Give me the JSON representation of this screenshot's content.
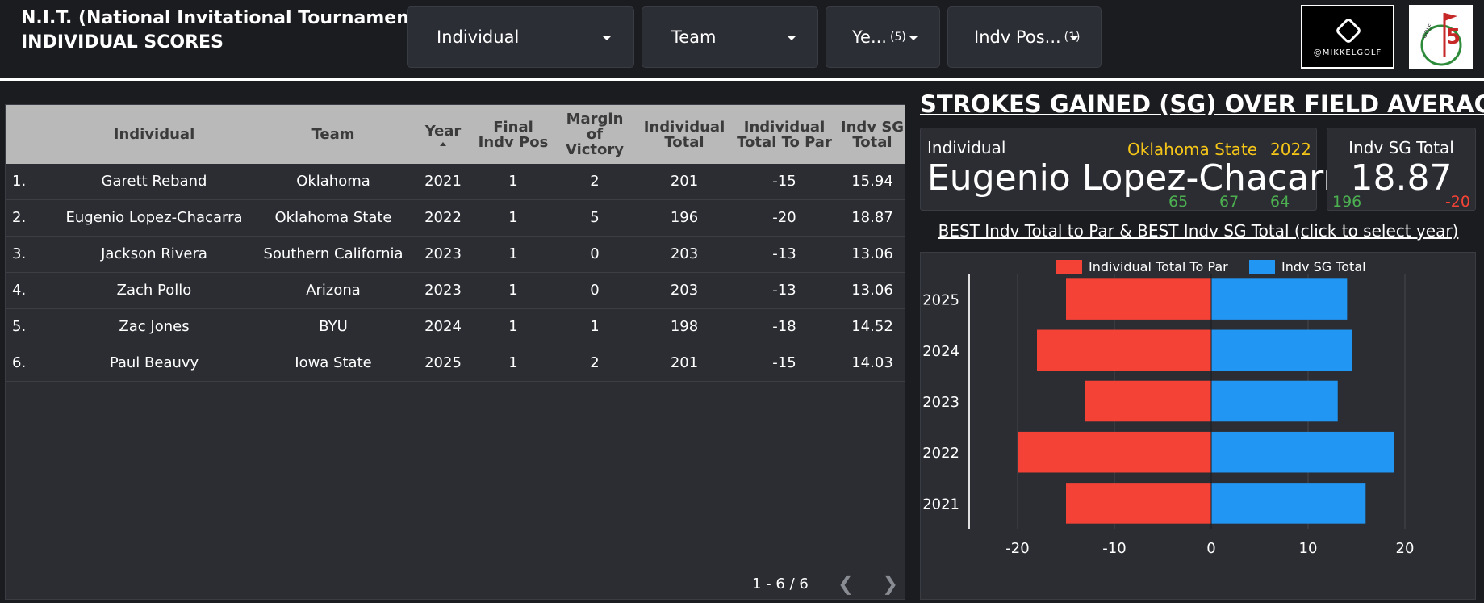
{
  "header": {
    "title_line1": "N.I.T. (National Invitational Tournament) |",
    "title_line2": "INDIVIDUAL SCORES"
  },
  "filters": [
    {
      "label": "Individual",
      "count": ""
    },
    {
      "label": "Team",
      "count": ""
    },
    {
      "label": "Ye...",
      "count": "(5)"
    },
    {
      "label": "Indv Pos...",
      "count": "(1)"
    }
  ],
  "logos": {
    "mikkel_text": "@MIKKELGOLF",
    "flag_text": "GOLF"
  },
  "table": {
    "columns": [
      "Individual",
      "Team",
      "Year",
      "Final Indv Pos",
      "Margin of Victory",
      "Individual Total",
      "Individual Total To Par",
      "Indv SG Total"
    ],
    "header_lines": {
      "final_pos": [
        "Final",
        "Indv Pos"
      ],
      "margin": [
        "Margin",
        "of",
        "Victory"
      ],
      "ind_total": [
        "Individual",
        "Total"
      ],
      "to_par": [
        "Individual",
        "Total To Par"
      ],
      "sg_total": [
        "Indv SG",
        "Total"
      ]
    },
    "rows": [
      {
        "rank": "1.",
        "individual": "Garett Reband",
        "team": "Oklahoma",
        "year": "2021",
        "pos": "1",
        "margin": "2",
        "total": "201",
        "to_par": "-15",
        "sg": "15.94"
      },
      {
        "rank": "2.",
        "individual": "Eugenio Lopez-Chacarra",
        "team": "Oklahoma State",
        "year": "2022",
        "pos": "1",
        "margin": "5",
        "total": "196",
        "to_par": "-20",
        "sg": "18.87"
      },
      {
        "rank": "3.",
        "individual": "Jackson Rivera",
        "team": "Southern California",
        "year": "2023",
        "pos": "1",
        "margin": "0",
        "total": "203",
        "to_par": "-13",
        "sg": "13.06"
      },
      {
        "rank": "4.",
        "individual": "Zach Pollo",
        "team": "Arizona",
        "year": "2023",
        "pos": "1",
        "margin": "0",
        "total": "203",
        "to_par": "-13",
        "sg": "13.06"
      },
      {
        "rank": "5.",
        "individual": "Zac Jones",
        "team": "BYU",
        "year": "2024",
        "pos": "1",
        "margin": "1",
        "total": "198",
        "to_par": "-18",
        "sg": "14.52"
      },
      {
        "rank": "6.",
        "individual": "Paul Beauvy",
        "team": "Iowa State",
        "year": "2025",
        "pos": "1",
        "margin": "2",
        "total": "201",
        "to_par": "-15",
        "sg": "14.03"
      }
    ],
    "pagination": "1 - 6 / 6"
  },
  "sg_section": {
    "title": "STROKES GAINED (SG) OVER FIELD AVERAGE",
    "individual_label": "Individual",
    "team": "Oklahoma State",
    "year": "2022",
    "name": "Eugenio Lopez-Chacarra",
    "rounds": [
      "65",
      "67",
      "64"
    ],
    "sg_label": "Indv SG Total",
    "sg_value": "18.87",
    "sg_total_strokes": "196",
    "sg_to_par": "-20",
    "best_title": "BEST Indv Total to Par & BEST Indv SG Total (click to select year)"
  },
  "colors": {
    "to_par": "#f44336",
    "sg": "#2196f3",
    "highlight": "#f5c518",
    "positive": "#4caf50"
  },
  "chart_data": {
    "type": "bar",
    "orientation": "horizontal",
    "categories": [
      "2025",
      "2024",
      "2023",
      "2022",
      "2021"
    ],
    "series": [
      {
        "name": "Individual Total To Par",
        "values": [
          -15,
          -18,
          -13,
          -20,
          -15
        ]
      },
      {
        "name": "Indv SG Total",
        "values": [
          14.03,
          14.52,
          13.06,
          18.87,
          15.94
        ]
      }
    ],
    "xticks": [
      "-20",
      "-10",
      "0",
      "10",
      "20"
    ],
    "xlim": [
      -25,
      25
    ],
    "legend": "top",
    "grid": true
  }
}
